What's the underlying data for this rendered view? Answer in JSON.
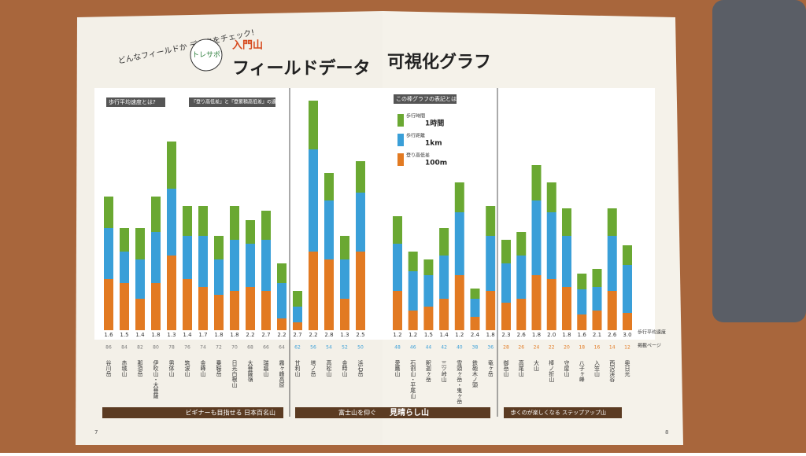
{
  "header": {
    "lead": "どんなフィールドか データをチェック!",
    "badge": "トレサポ",
    "kicker": "入門山",
    "title_left": "フィールドデータ",
    "title_right": "可視化グラフ"
  },
  "notes": {
    "speed": "歩行平均速度とは?",
    "elevation": "『登り高低差』と『登累積高低差』の違いは?",
    "legend": "この棒グラフの表記とは"
  },
  "chart_data": {
    "type": "bar",
    "stacked": true,
    "categories": [
      "谷川岳",
      "赤城山",
      "那須岳",
      "伊吹山・大菩薩",
      "男体山",
      "筑波山",
      "金峰山",
      "乗鞍岳",
      "日光白根山",
      "大菩薩嶺",
      "瑞牆山",
      "霧ヶ峰高原",
      "甘利山",
      "塔ノ岳",
      "高松山",
      "金時山",
      "浜石岳",
      "愛鷹山",
      "石割山・平尾山",
      "釈迦ヶ岳",
      "三ツ峠山",
      "雪頭ヶ岳・鬼ヶ岳",
      "鉄砲木ノ頭",
      "竜ヶ岳",
      "御岳山",
      "高尾山",
      "大山",
      "棒ノ折山",
      "守屋山",
      "八子ヶ峰",
      "入笠山",
      "西沢渓谷",
      "奥日光"
    ],
    "series": [
      {
        "name": "歩行時間",
        "unit": "1時間",
        "color": "#6aa832",
        "values": [
          40,
          30,
          40,
          45,
          60,
          38,
          38,
          30,
          43,
          30,
          37,
          25,
          20,
          62,
          35,
          30,
          40,
          35,
          25,
          20,
          35,
          38,
          13,
          38,
          30,
          30,
          45,
          38,
          35,
          20,
          23,
          35,
          25
        ]
      },
      {
        "name": "歩行距離",
        "unit": "1km",
        "color": "#3a9fd8",
        "values": [
          65,
          40,
          50,
          65,
          85,
          55,
          65,
          45,
          65,
          55,
          65,
          45,
          20,
          130,
          75,
          50,
          75,
          60,
          50,
          40,
          55,
          80,
          23,
          70,
          50,
          55,
          95,
          85,
          65,
          32,
          30,
          70,
          61
        ]
      },
      {
        "name": "登り高低差",
        "unit": "100m",
        "color": "#e27a22",
        "values": [
          65,
          60,
          40,
          60,
          95,
          65,
          55,
          45,
          50,
          55,
          50,
          15,
          10,
          100,
          90,
          40,
          100,
          50,
          25,
          30,
          40,
          70,
          17,
          50,
          35,
          40,
          70,
          65,
          55,
          20,
          25,
          50,
          22
        ]
      }
    ],
    "speeds": [
      "1.6",
      "1.5",
      "1.4",
      "1.8",
      "1.3",
      "1.4",
      "1.7",
      "1.8",
      "1.8",
      "2.2",
      "2.7",
      "2.2",
      "2.7",
      "2.2",
      "2.8",
      "1.3",
      "2.5",
      "1.2",
      "1.2",
      "1.5",
      "1.4",
      "1.2",
      "2.4",
      "1.8",
      "2.3",
      "2.6",
      "1.8",
      "2.0",
      "1.8",
      "1.6",
      "2.1",
      "2.6",
      "3.0"
    ],
    "pages": [
      "86",
      "84",
      "82",
      "80",
      "78",
      "76",
      "74",
      "72",
      "70",
      "68",
      "66",
      "64",
      "62",
      "56",
      "54",
      "52",
      "50",
      "48",
      "46",
      "44",
      "42",
      "40",
      "38",
      "36",
      "28",
      "26",
      "24",
      "22",
      "20",
      "18",
      "16",
      "14",
      "12"
    ],
    "row_speed": "歩行平均速度",
    "row_page": "掲載ページ",
    "ylim": [
      0,
      300
    ]
  },
  "groups": {
    "g1": "ビギナーも目指せる 日本百名山",
    "g2a": "富士山を仰ぐ",
    "g2b": "見晴らし山",
    "g3": "歩くのが楽しくなる ステップアップ山"
  },
  "folio": {
    "left": "7",
    "right": "8"
  }
}
